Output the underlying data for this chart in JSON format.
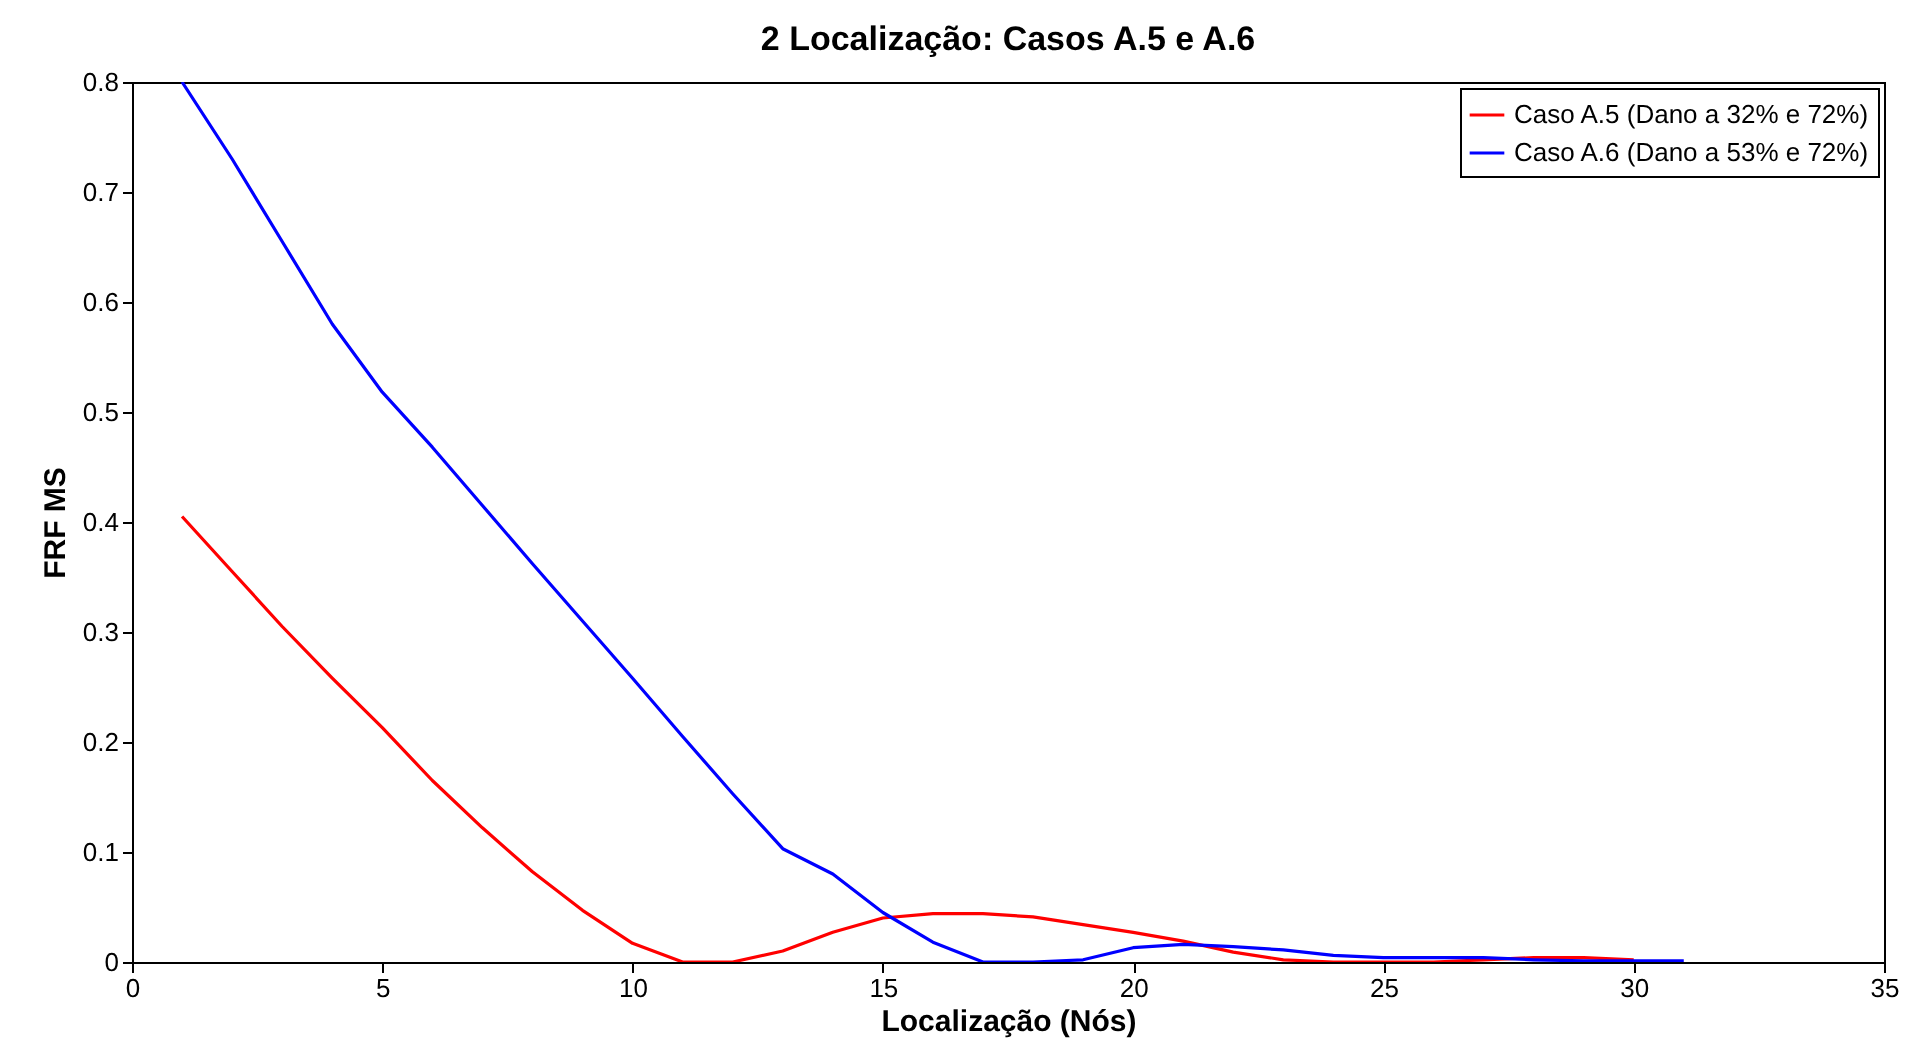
{
  "chart_data": {
    "type": "line",
    "title": "2 Localização: Casos A.5 e A.6",
    "xlabel": "Localização (Nós)",
    "ylabel": "FRF MS",
    "x": [
      1,
      2,
      3,
      4,
      5,
      6,
      7,
      8,
      9,
      10,
      11,
      12,
      13,
      14,
      15,
      16,
      17,
      18,
      19,
      20,
      21,
      22,
      23,
      24,
      25,
      26,
      27,
      28,
      29,
      30,
      31
    ],
    "series": [
      {
        "name": "Caso A.5 (Dano a 32% e 72%)",
        "color": "#ff0000",
        "values": [
          0.405,
          0.355,
          0.305,
          0.258,
          0.213,
          0.165,
          0.122,
          0.082,
          0.047,
          0.017,
          0.0,
          0.0,
          0.01,
          0.027,
          0.04,
          0.044,
          0.044,
          0.041,
          0.034,
          0.027,
          0.019,
          0.009,
          0.002,
          0.0,
          0.0,
          0.0,
          0.002,
          0.004,
          0.004,
          0.002,
          null
        ]
      },
      {
        "name": "Caso A.6 (Dano a 53% e 72%)",
        "color": "#0000ff",
        "values": [
          0.8,
          0.73,
          0.655,
          0.58,
          0.518,
          0.468,
          0.415,
          0.362,
          0.31,
          0.258,
          0.205,
          0.153,
          0.103,
          0.08,
          0.045,
          0.018,
          0.0,
          0.0,
          0.002,
          0.013,
          0.016,
          0.014,
          0.011,
          0.006,
          0.004,
          0.004,
          0.004,
          0.002,
          0.001,
          0.001,
          0.001
        ]
      }
    ],
    "xlim": [
      0,
      35
    ],
    "xticks": [
      0,
      5,
      10,
      15,
      20,
      25,
      30,
      35
    ],
    "ylim": [
      0,
      0.8
    ],
    "yticks": [
      0,
      0.1,
      0.2,
      0.3,
      0.4,
      0.5,
      0.6,
      0.7,
      0.8
    ],
    "grid": false,
    "legend": "top right",
    "marker": "none",
    "line_style": "solid"
  }
}
